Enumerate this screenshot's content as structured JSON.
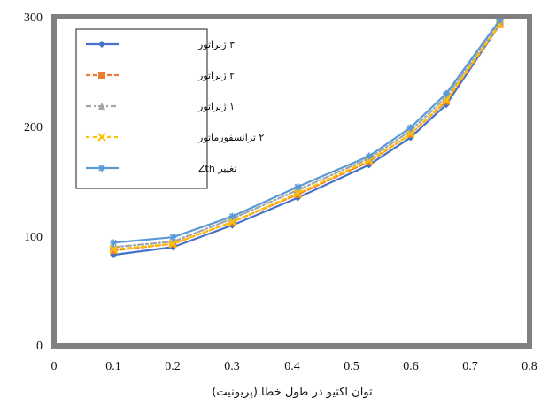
{
  "chart_data": {
    "type": "line",
    "title": "",
    "xlabel": "توان اکتیو در طول خطا (پریونیت)",
    "ylabel": "",
    "xlim": [
      0,
      0.8
    ],
    "ylim": [
      0,
      300
    ],
    "x_ticks": [
      "0",
      "0.1",
      "0.2",
      "0.3",
      "0.4",
      "0.5",
      "0.6",
      "0.7",
      "0.8"
    ],
    "y_ticks": [
      "0",
      "100",
      "200",
      "300"
    ],
    "grid": false,
    "legend_position": "top-left",
    "series": [
      {
        "name": "۳ ژنراتور",
        "color": "#4472c4",
        "dash": "",
        "marker": "diamond",
        "x": [
          0.1,
          0.2,
          0.3,
          0.41,
          0.53,
          0.6,
          0.66,
          0.75
        ],
        "y": [
          83,
          90,
          110,
          135,
          165,
          190,
          220,
          293
        ]
      },
      {
        "name": "۲ ژنراتور",
        "color": "#ed7d31",
        "dash": "5,3",
        "marker": "square",
        "x": [
          0.1,
          0.2,
          0.3,
          0.41,
          0.53,
          0.6,
          0.66,
          0.75
        ],
        "y": [
          87,
          93,
          113,
          138,
          168,
          193,
          223,
          293
        ]
      },
      {
        "name": "۱ ژنراتور",
        "color": "#a5a5a5",
        "dash": "6,3,2,3",
        "marker": "triangle",
        "x": [
          0.1,
          0.2,
          0.3,
          0.41,
          0.53,
          0.6,
          0.66,
          0.75
        ],
        "y": [
          90,
          95,
          116,
          142,
          171,
          196,
          227,
          294
        ]
      },
      {
        "name": "۲ ترانسفورماتور",
        "color": "#ffc000",
        "dash": "4,4",
        "marker": "x",
        "x": [
          0.1,
          0.2,
          0.3,
          0.41,
          0.53,
          0.6,
          0.66,
          0.75
        ],
        "y": [
          88,
          93,
          113,
          139,
          169,
          193,
          224,
          293
        ]
      },
      {
        "name": "تغییر Zth",
        "color": "#5b9bd5",
        "dash": "",
        "marker": "star",
        "x": [
          0.1,
          0.2,
          0.3,
          0.41,
          0.53,
          0.6,
          0.66,
          0.75
        ],
        "y": [
          94,
          99,
          118,
          145,
          173,
          199,
          230,
          297
        ]
      }
    ]
  }
}
